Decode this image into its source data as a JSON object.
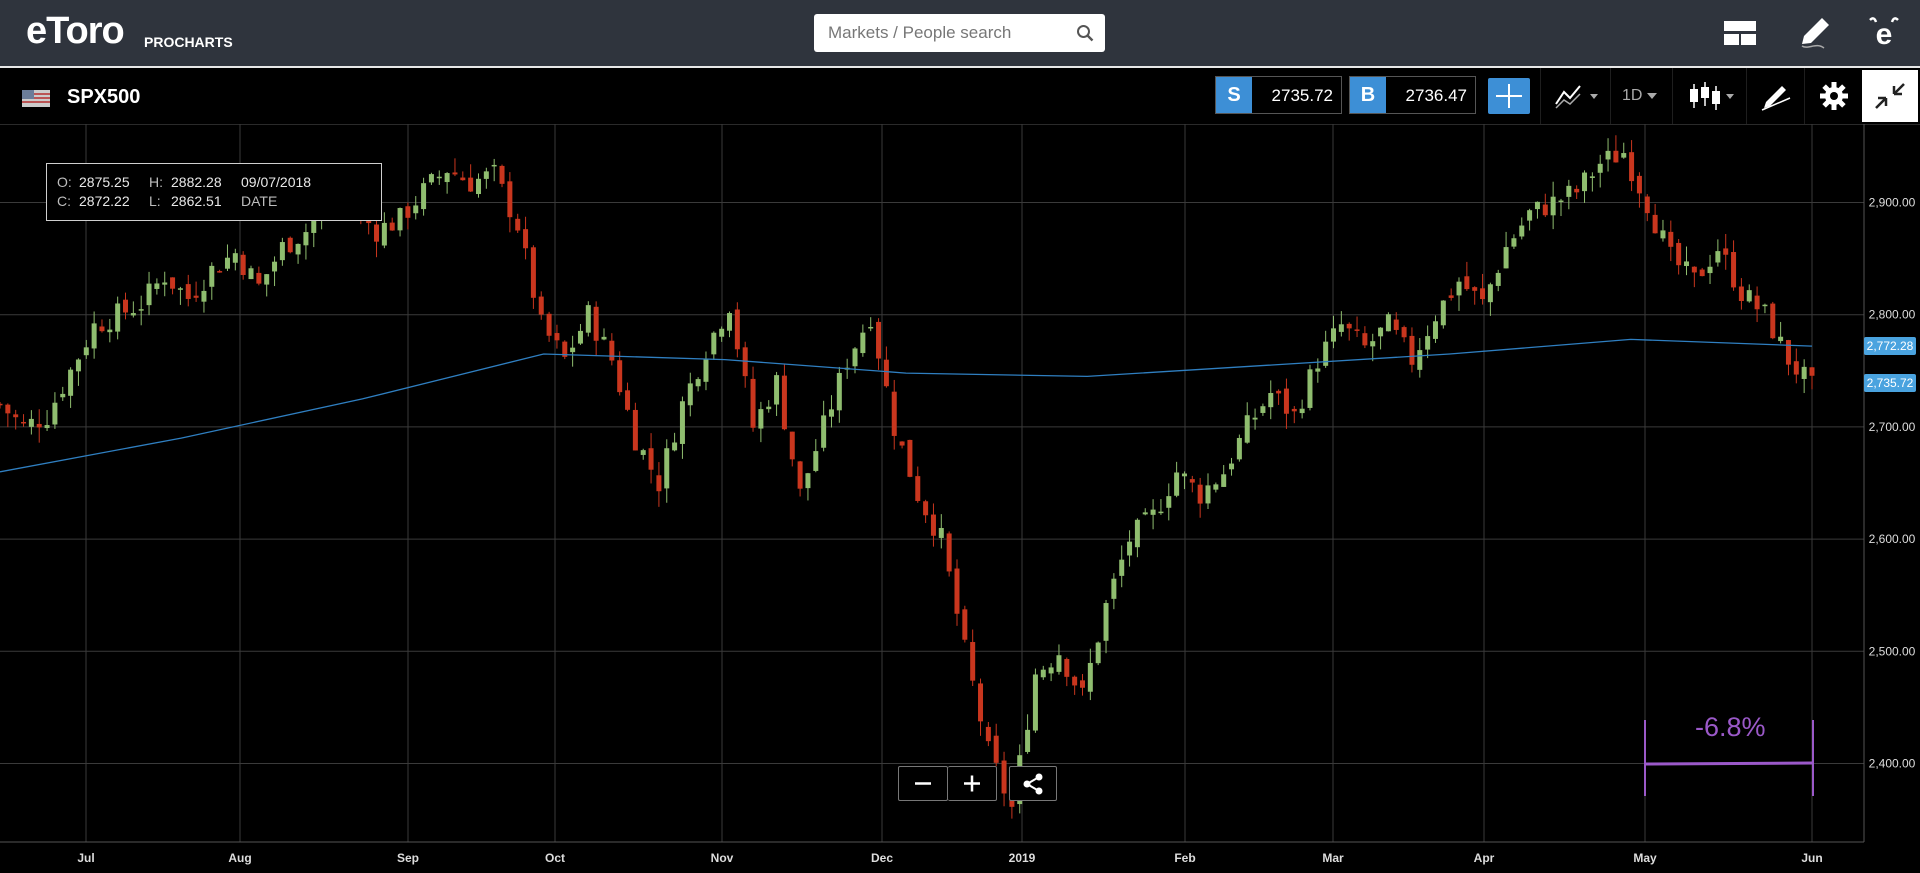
{
  "header": {
    "brand": "eToro",
    "product": "PROCHARTS",
    "search_placeholder": "Markets / People search",
    "icons": [
      "layout-icon",
      "edit-pencil-icon",
      "etoro-profile-icon"
    ]
  },
  "instrument": {
    "symbol": "SPX500",
    "sell_label": "S",
    "sell_price": "2735.72",
    "buy_label": "B",
    "buy_price": "2736.47",
    "timeframe": "1D",
    "toolbar_icons": [
      "crosshair-icon",
      "indicators-icon",
      "candlestick-type-icon",
      "drawing-tools-icon",
      "settings-gear-icon",
      "collapse-fullscreen-icon"
    ]
  },
  "ohlc": {
    "open_label": "O:",
    "open": "2875.25",
    "high_label": "H:",
    "high": "2882.28",
    "close_label": "C:",
    "close": "2872.22",
    "low_label": "L:",
    "low": "2862.51",
    "date": "09/07/2018",
    "date_label": "DATE"
  },
  "measure": {
    "label": "-6.8%"
  },
  "price_tags": {
    "ma": "2,772.28",
    "last": "2,735.72"
  },
  "zoom": {
    "minus": "−",
    "plus": "+"
  },
  "colors": {
    "up": "#8fbd6f",
    "down": "#c9361e",
    "ma_line": "#2f7fc1",
    "accent": "#3d8fd6",
    "measure": "#9b59c9",
    "grid": "#3a3a3a"
  },
  "chart_data": {
    "type": "candlestick",
    "symbol": "SPX500",
    "interval": "1D",
    "x_ticks": [
      "Jul",
      "Aug",
      "Sep",
      "Oct",
      "Nov",
      "Dec",
      "2019",
      "Feb",
      "Mar",
      "Apr",
      "May",
      "Jun"
    ],
    "y_ticks": [
      "2,900.00",
      "2,800.00",
      "2,700.00",
      "2,600.00",
      "2,500.00",
      "2,400.00"
    ],
    "y_range": [
      2330,
      2970
    ],
    "close_path": [
      [
        2018.5,
        2720
      ],
      [
        2018.52,
        2700
      ],
      [
        2018.54,
        2710
      ],
      [
        2018.56,
        2750
      ],
      [
        2018.58,
        2790
      ],
      [
        2018.6,
        2800
      ],
      [
        2018.62,
        2810
      ],
      [
        2018.64,
        2835
      ],
      [
        2018.66,
        2815
      ],
      [
        2018.68,
        2840
      ],
      [
        2018.7,
        2855
      ],
      [
        2018.72,
        2825
      ],
      [
        2018.74,
        2860
      ],
      [
        2018.76,
        2875
      ],
      [
        2018.78,
        2905
      ],
      [
        2018.8,
        2895
      ],
      [
        2018.82,
        2875
      ],
      [
        2018.84,
        2885
      ],
      [
        2018.86,
        2910
      ],
      [
        2018.88,
        2930
      ],
      [
        2018.9,
        2918
      ],
      [
        2018.92,
        2925
      ],
      [
        2018.94,
        2880
      ],
      [
        2018.96,
        2790
      ],
      [
        2018.98,
        2760
      ],
      [
        2019.0,
        2800
      ],
      [
        2019.02,
        2760
      ],
      [
        2019.04,
        2690
      ],
      [
        2019.06,
        2650
      ],
      [
        2019.08,
        2720
      ],
      [
        2019.1,
        2770
      ],
      [
        2019.12,
        2810
      ],
      [
        2019.14,
        2700
      ],
      [
        2019.16,
        2740
      ],
      [
        2019.18,
        2640
      ],
      [
        2019.2,
        2700
      ],
      [
        2019.22,
        2760
      ],
      [
        2019.24,
        2800
      ],
      [
        2019.26,
        2700
      ],
      [
        2019.28,
        2640
      ],
      [
        2019.3,
        2600
      ],
      [
        2019.32,
        2500
      ],
      [
        2019.34,
        2410
      ],
      [
        2019.36,
        2360
      ],
      [
        2019.38,
        2480
      ],
      [
        2019.4,
        2500
      ],
      [
        2019.42,
        2460
      ],
      [
        2019.44,
        2540
      ],
      [
        2019.46,
        2600
      ],
      [
        2019.48,
        2620
      ],
      [
        2019.5,
        2660
      ],
      [
        2019.52,
        2640
      ],
      [
        2019.54,
        2660
      ],
      [
        2019.56,
        2700
      ],
      [
        2019.58,
        2730
      ],
      [
        2019.6,
        2710
      ],
      [
        2019.62,
        2760
      ],
      [
        2019.64,
        2790
      ],
      [
        2019.66,
        2770
      ],
      [
        2019.68,
        2790
      ],
      [
        2019.7,
        2760
      ],
      [
        2019.72,
        2800
      ],
      [
        2019.74,
        2830
      ],
      [
        2019.76,
        2810
      ],
      [
        2019.78,
        2860
      ],
      [
        2019.8,
        2890
      ],
      [
        2019.82,
        2900
      ],
      [
        2019.84,
        2910
      ],
      [
        2019.86,
        2935
      ],
      [
        2019.88,
        2945
      ],
      [
        2019.9,
        2900
      ],
      [
        2019.92,
        2850
      ],
      [
        2019.94,
        2830
      ],
      [
        2019.96,
        2860
      ],
      [
        2019.98,
        2820
      ],
      [
        2020.0,
        2800
      ],
      [
        2020.02,
        2760
      ],
      [
        2020.04,
        2735
      ]
    ],
    "moving_average": [
      [
        0,
        2660
      ],
      [
        0.1,
        2690
      ],
      [
        0.2,
        2725
      ],
      [
        0.3,
        2765
      ],
      [
        0.4,
        2760
      ],
      [
        0.5,
        2748
      ],
      [
        0.6,
        2745
      ],
      [
        0.7,
        2755
      ],
      [
        0.8,
        2765
      ],
      [
        0.9,
        2778
      ],
      [
        1.0,
        2772
      ]
    ],
    "measure_pct": -6.8
  }
}
